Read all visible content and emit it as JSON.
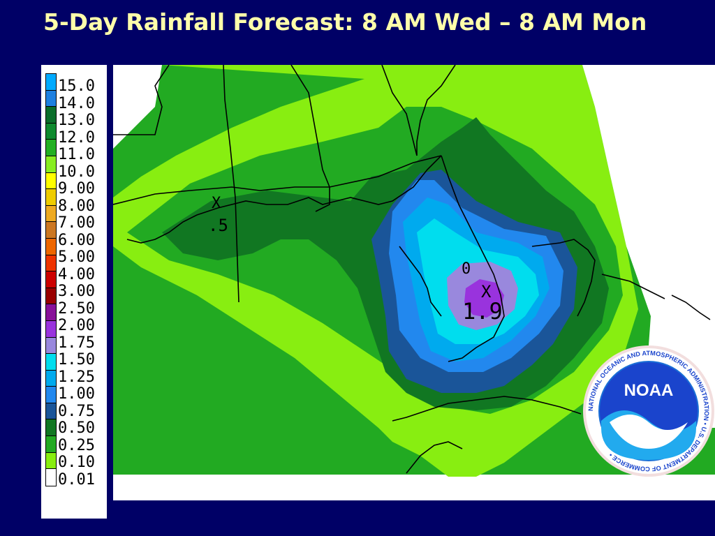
{
  "title": "5-Day Rainfall Forecast: 8 AM Wed – 8 AM Mon",
  "legend": {
    "items": [
      {
        "label": "15.0",
        "color": "#00aaff"
      },
      {
        "label": "14.0",
        "color": "#1e80e0"
      },
      {
        "label": "13.0",
        "color": "#0a6e2a"
      },
      {
        "label": "12.0",
        "color": "#0e8a2e"
      },
      {
        "label": "11.0",
        "color": "#22b022"
      },
      {
        "label": "10.0",
        "color": "#88ee22"
      },
      {
        "label": "9.00",
        "color": "#ffff00"
      },
      {
        "label": "8.00",
        "color": "#eecc00"
      },
      {
        "label": "7.00",
        "color": "#eeaa22"
      },
      {
        "label": "6.00",
        "color": "#cc7722"
      },
      {
        "label": "5.00",
        "color": "#ee6600"
      },
      {
        "label": "4.00",
        "color": "#ee3300"
      },
      {
        "label": "3.00",
        "color": "#cc0000"
      },
      {
        "label": "2.50",
        "color": "#990000"
      },
      {
        "label": "2.00",
        "color": "#881199"
      },
      {
        "label": "1.75",
        "color": "#9933dd"
      },
      {
        "label": "1.50",
        "color": "#9988dd"
      },
      {
        "label": "1.25",
        "color": "#00ddee"
      },
      {
        "label": "1.00",
        "color": "#00aaee"
      },
      {
        "label": "0.75",
        "color": "#2288ee"
      },
      {
        "label": "0.50",
        "color": "#1a5599"
      },
      {
        "label": "0.25",
        "color": "#117722"
      },
      {
        "label": "0.10",
        "color": "#22aa22"
      },
      {
        "label": "0.01",
        "color": "#88ee11"
      },
      {
        "label": "",
        "color": "#ffffff"
      }
    ]
  },
  "map": {
    "annotations": [
      {
        "text": "1.9"
      },
      {
        "text": "X"
      },
      {
        "text": "X"
      },
      {
        "text": ".5"
      },
      {
        "text": "0"
      }
    ]
  },
  "logo": {
    "center_text": "NOAA",
    "ring_text": "NATIONAL OCEANIC AND ATMOSPHERIC ADMINISTRATION • U.S. DEPARTMENT OF COMMERCE •"
  }
}
